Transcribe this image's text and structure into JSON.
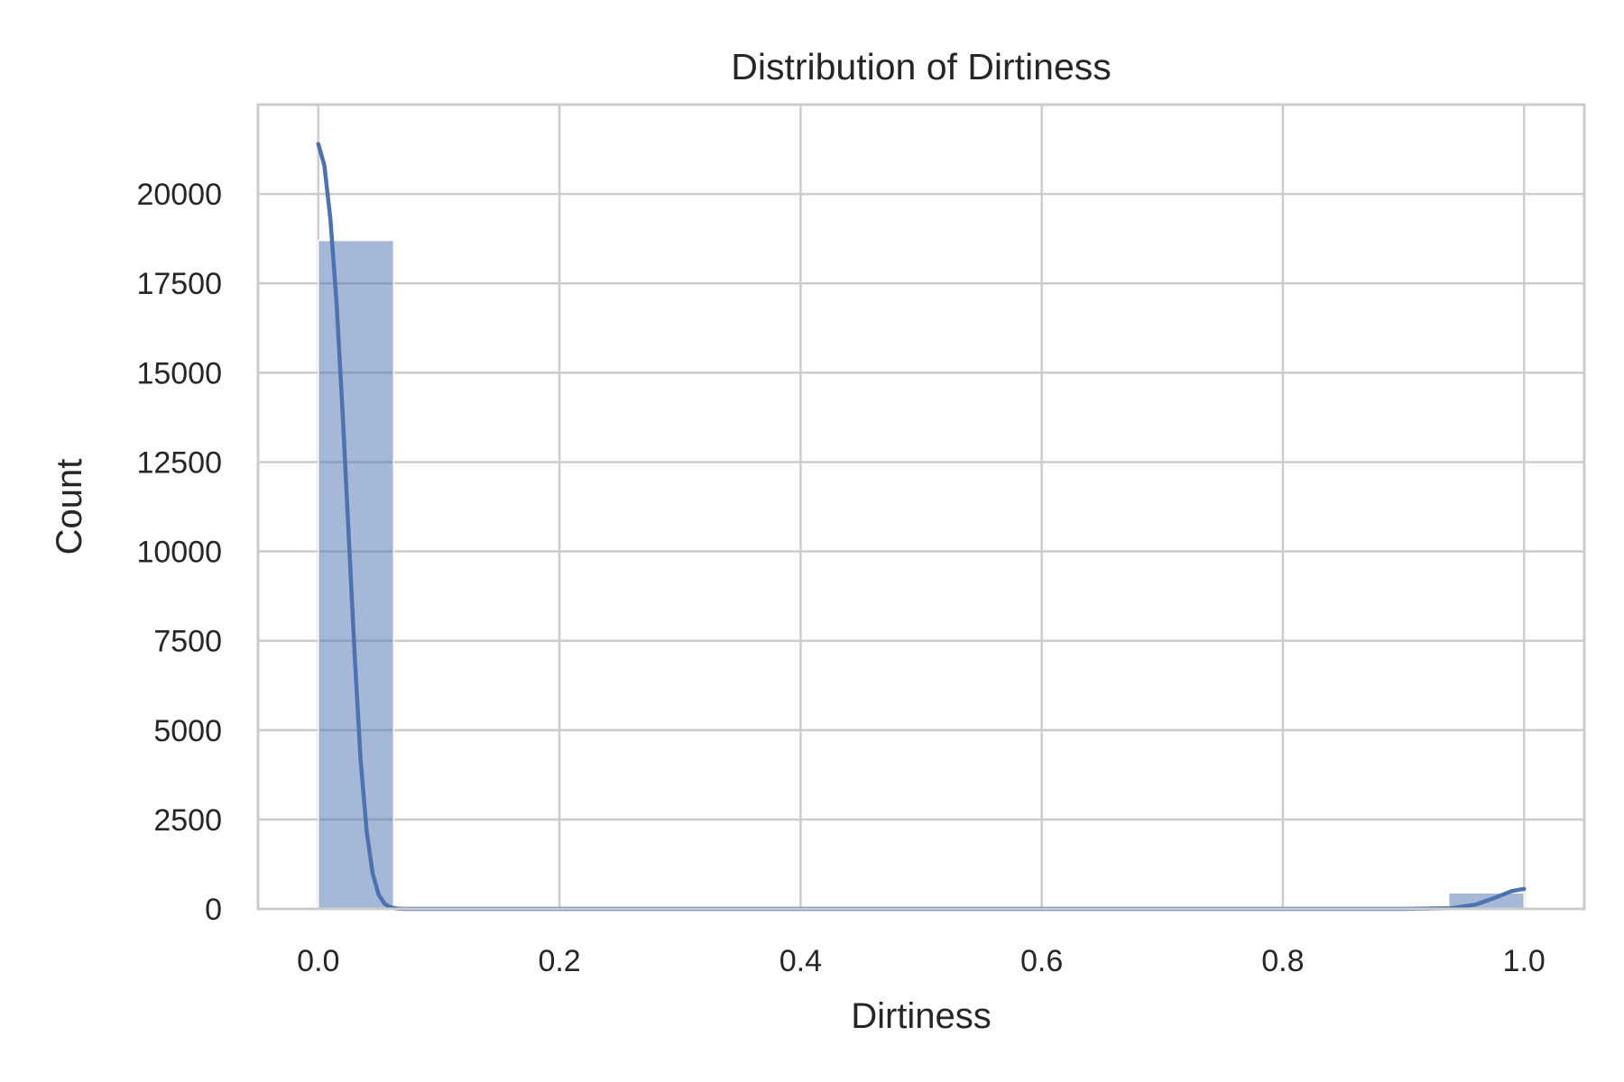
{
  "chart_data": {
    "type": "bar",
    "title": "Distribution of Dirtiness",
    "xlabel": "Dirtiness",
    "ylabel": "Count",
    "xlim": [
      -0.05,
      1.05
    ],
    "ylim": [
      0,
      22500
    ],
    "xticks": [
      0.0,
      0.2,
      0.4,
      0.6,
      0.8,
      1.0
    ],
    "xtick_labels": [
      "0.0",
      "0.2",
      "0.4",
      "0.6",
      "0.8",
      "1.0"
    ],
    "yticks": [
      0,
      2500,
      5000,
      7500,
      10000,
      12500,
      15000,
      17500,
      20000
    ],
    "ytick_labels": [
      "0",
      "2500",
      "5000",
      "7500",
      "10000",
      "12500",
      "15000",
      "17500",
      "20000"
    ],
    "grid": true,
    "bins": {
      "start": 0.0,
      "width": 0.0625,
      "counts": [
        18700,
        0,
        0,
        0,
        0,
        0,
        0,
        0,
        0,
        0,
        0,
        0,
        0,
        0,
        0,
        450
      ]
    },
    "kde": {
      "x": [
        0.0,
        0.005,
        0.01,
        0.015,
        0.02,
        0.025,
        0.03,
        0.035,
        0.04,
        0.045,
        0.05,
        0.055,
        0.06,
        0.065,
        0.07,
        0.08,
        0.1,
        0.3,
        0.5,
        0.7,
        0.9,
        0.94,
        0.96,
        0.975,
        0.99,
        1.0
      ],
      "y": [
        21400,
        20800,
        19300,
        17000,
        14000,
        10600,
        7200,
        4200,
        2200,
        1000,
        400,
        140,
        40,
        10,
        0,
        0,
        0,
        0,
        0,
        0,
        0,
        20,
        120,
        300,
        500,
        560
      ]
    },
    "colors": {
      "bar": "#4c72b0",
      "bar_opacity": 0.5,
      "line": "#4c72b0",
      "grid": "#cccccc",
      "text": "#262626"
    }
  }
}
